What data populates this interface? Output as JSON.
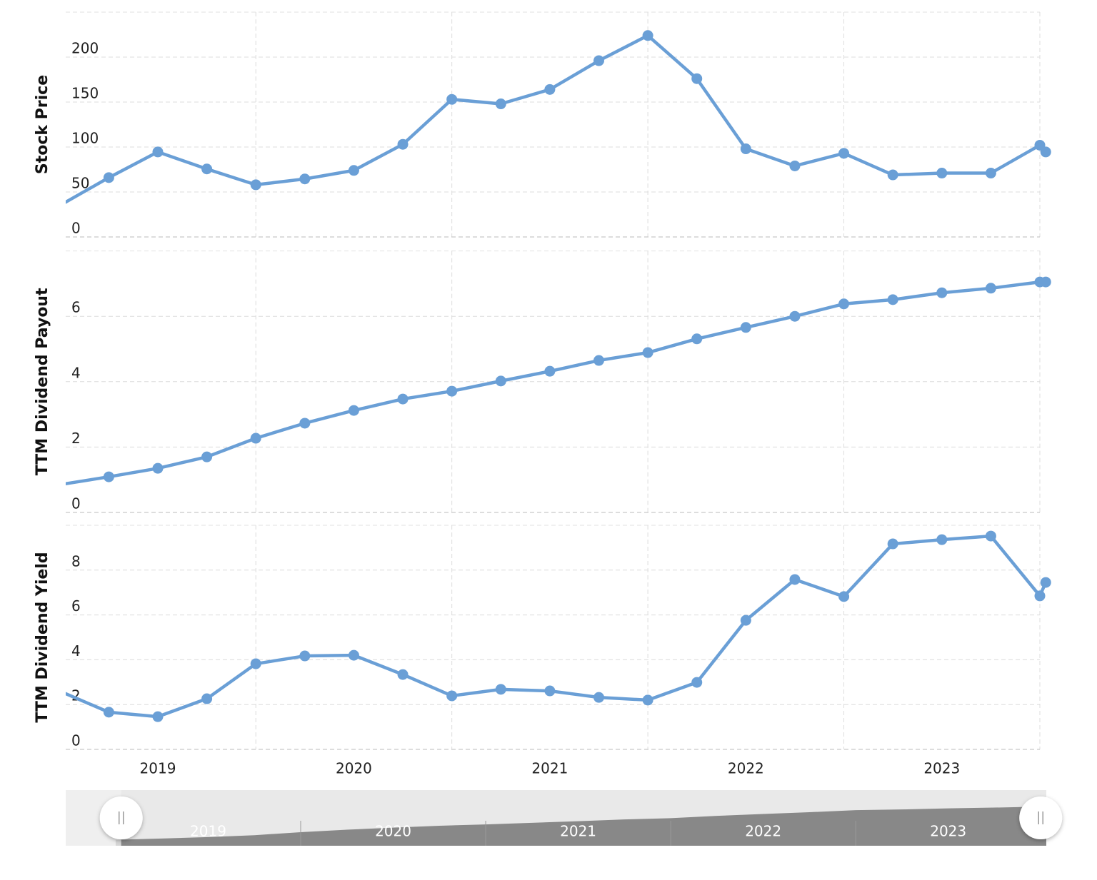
{
  "chart_data": [
    {
      "type": "line",
      "y_label": "Stock Price",
      "color": "#6a9fd6",
      "x": [
        2019.0,
        2019.25,
        2019.5,
        2019.75,
        2020.0,
        2020.25,
        2020.5,
        2020.75,
        2021.0,
        2021.25,
        2021.5,
        2021.75,
        2022.0,
        2022.25,
        2022.5,
        2022.75,
        2023.0,
        2023.25,
        2023.5,
        2023.75,
        2024.0,
        2024.03
      ],
      "values": [
        35,
        66,
        94.5,
        75.6,
        58,
        64.5,
        74,
        103,
        153,
        148,
        164,
        196,
        224,
        176,
        98,
        79,
        93,
        69,
        71,
        71,
        102,
        94.5
      ],
      "xlim": [
        2019.03,
        2024.0
      ],
      "ylim": [
        0,
        250
      ],
      "yticks": [
        0,
        50,
        100,
        150,
        200
      ],
      "grid": true
    },
    {
      "type": "line",
      "y_label": "TTM Dividend Payout",
      "color": "#6a9fd6",
      "x": [
        2019.0,
        2019.25,
        2019.5,
        2019.75,
        2020.0,
        2020.25,
        2020.5,
        2020.75,
        2021.0,
        2021.25,
        2021.5,
        2021.75,
        2022.0,
        2022.25,
        2022.5,
        2022.75,
        2023.0,
        2023.25,
        2023.5,
        2023.75,
        2024.0,
        2024.03
      ],
      "values": [
        0.85,
        1.09,
        1.35,
        1.7,
        2.27,
        2.73,
        3.12,
        3.47,
        3.71,
        4.02,
        4.32,
        4.65,
        4.89,
        5.31,
        5.66,
        6.0,
        6.38,
        6.51,
        6.72,
        6.86,
        7.05,
        7.05
      ],
      "xlim": [
        2019.03,
        2024.0
      ],
      "ylim": [
        0,
        8
      ],
      "yticks": [
        0,
        2,
        4,
        6
      ],
      "grid": true
    },
    {
      "type": "line",
      "y_label": "TTM Dividend Yield",
      "color": "#6a9fd6",
      "x": [
        2019.0,
        2019.25,
        2019.5,
        2019.75,
        2020.0,
        2020.25,
        2020.5,
        2020.75,
        2021.0,
        2021.25,
        2021.5,
        2021.75,
        2022.0,
        2022.25,
        2022.5,
        2022.75,
        2023.0,
        2023.25,
        2023.5,
        2023.75,
        2024.0,
        2024.03
      ],
      "values": [
        2.6,
        1.66,
        1.46,
        2.26,
        3.82,
        4.17,
        4.2,
        3.34,
        2.39,
        2.68,
        2.61,
        2.32,
        2.2,
        2.99,
        5.76,
        7.58,
        6.82,
        9.17,
        9.36,
        9.52,
        6.85,
        7.45
      ],
      "xlim": [
        2019.03,
        2024.0
      ],
      "ylim": [
        0,
        10
      ],
      "yticks": [
        0,
        2,
        4,
        6,
        8
      ],
      "grid": true,
      "xticks": [
        {
          "value": 2019.5,
          "label": "2019"
        },
        {
          "value": 2020.5,
          "label": "2020"
        },
        {
          "value": 2021.5,
          "label": "2021"
        },
        {
          "value": 2022.5,
          "label": "2022"
        },
        {
          "value": 2023.5,
          "label": "2023"
        }
      ],
      "xgrid": [
        2020,
        2021,
        2022,
        2023,
        2024
      ]
    }
  ],
  "navigator": {
    "xlim": [
      2018.73,
      2024.03
    ],
    "xticks": [
      {
        "value": 2019.5,
        "label": "2019"
      },
      {
        "value": 2020.5,
        "label": "2020"
      },
      {
        "value": 2021.5,
        "label": "2021"
      },
      {
        "value": 2022.5,
        "label": "2022"
      },
      {
        "value": 2023.5,
        "label": "2023"
      }
    ],
    "xgrid": [
      2020,
      2021,
      2022,
      2023
    ]
  }
}
